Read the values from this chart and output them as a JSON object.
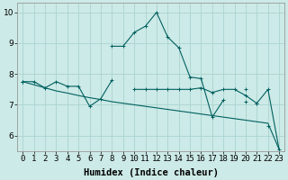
{
  "xlabel": "Humidex (Indice chaleur)",
  "background_color": "#cceae7",
  "grid_color": "#aad4d0",
  "line_color": "#006060",
  "x_values": [
    0,
    1,
    2,
    3,
    4,
    5,
    6,
    7,
    8,
    9,
    10,
    11,
    12,
    13,
    14,
    15,
    16,
    17,
    18,
    19,
    20,
    21,
    22,
    23
  ],
  "series_arch": [
    7.75,
    null,
    null,
    null,
    null,
    null,
    null,
    null,
    8.9,
    8.9,
    9.35,
    9.55,
    10.0,
    9.2,
    8.85,
    7.9,
    7.85,
    6.6,
    7.15,
    null,
    7.1,
    null,
    null,
    null
  ],
  "series_zigzag": [
    7.75,
    7.75,
    7.55,
    7.75,
    7.6,
    7.6,
    6.95,
    7.2,
    7.8,
    null,
    null,
    null,
    null,
    null,
    null,
    null,
    null,
    null,
    null,
    null,
    null,
    null,
    null,
    null
  ],
  "series_flat1": [
    null,
    null,
    null,
    null,
    null,
    null,
    null,
    null,
    null,
    null,
    7.5,
    7.5,
    7.5,
    7.5,
    7.5,
    7.5,
    7.55,
    7.4,
    7.5,
    7.5,
    7.3,
    7.05,
    null,
    null
  ],
  "series_decline": [
    7.75,
    null,
    null,
    null,
    null,
    null,
    null,
    null,
    null,
    null,
    null,
    null,
    null,
    null,
    null,
    null,
    null,
    null,
    null,
    null,
    null,
    7.05,
    7.5,
    5.55
  ],
  "series_short": [
    null,
    null,
    null,
    null,
    null,
    null,
    null,
    null,
    null,
    null,
    null,
    null,
    null,
    null,
    null,
    null,
    null,
    null,
    null,
    null,
    7.5,
    null,
    6.3,
    null
  ],
  "series_linear_decline": [
    7.75,
    7.65,
    7.55,
    7.45,
    7.38,
    7.3,
    7.23,
    7.17,
    7.1,
    7.05,
    7.0,
    6.95,
    6.9,
    6.85,
    6.8,
    6.75,
    6.7,
    6.65,
    6.6,
    6.55,
    6.5,
    6.45,
    6.4,
    5.55
  ],
  "ylim": [
    5.5,
    10.3
  ],
  "xlim": [
    -0.5,
    23.5
  ],
  "yticks": [
    6,
    7,
    8,
    9,
    10
  ],
  "xtick_labels": [
    "0",
    "1",
    "2",
    "3",
    "4",
    "5",
    "6",
    "7",
    "8",
    "9",
    "10",
    "11",
    "12",
    "13",
    "14",
    "15",
    "16",
    "17",
    "18",
    "19",
    "20",
    "21",
    "22",
    "23"
  ],
  "label_fontsize": 7.5,
  "tick_fontsize": 6.5
}
